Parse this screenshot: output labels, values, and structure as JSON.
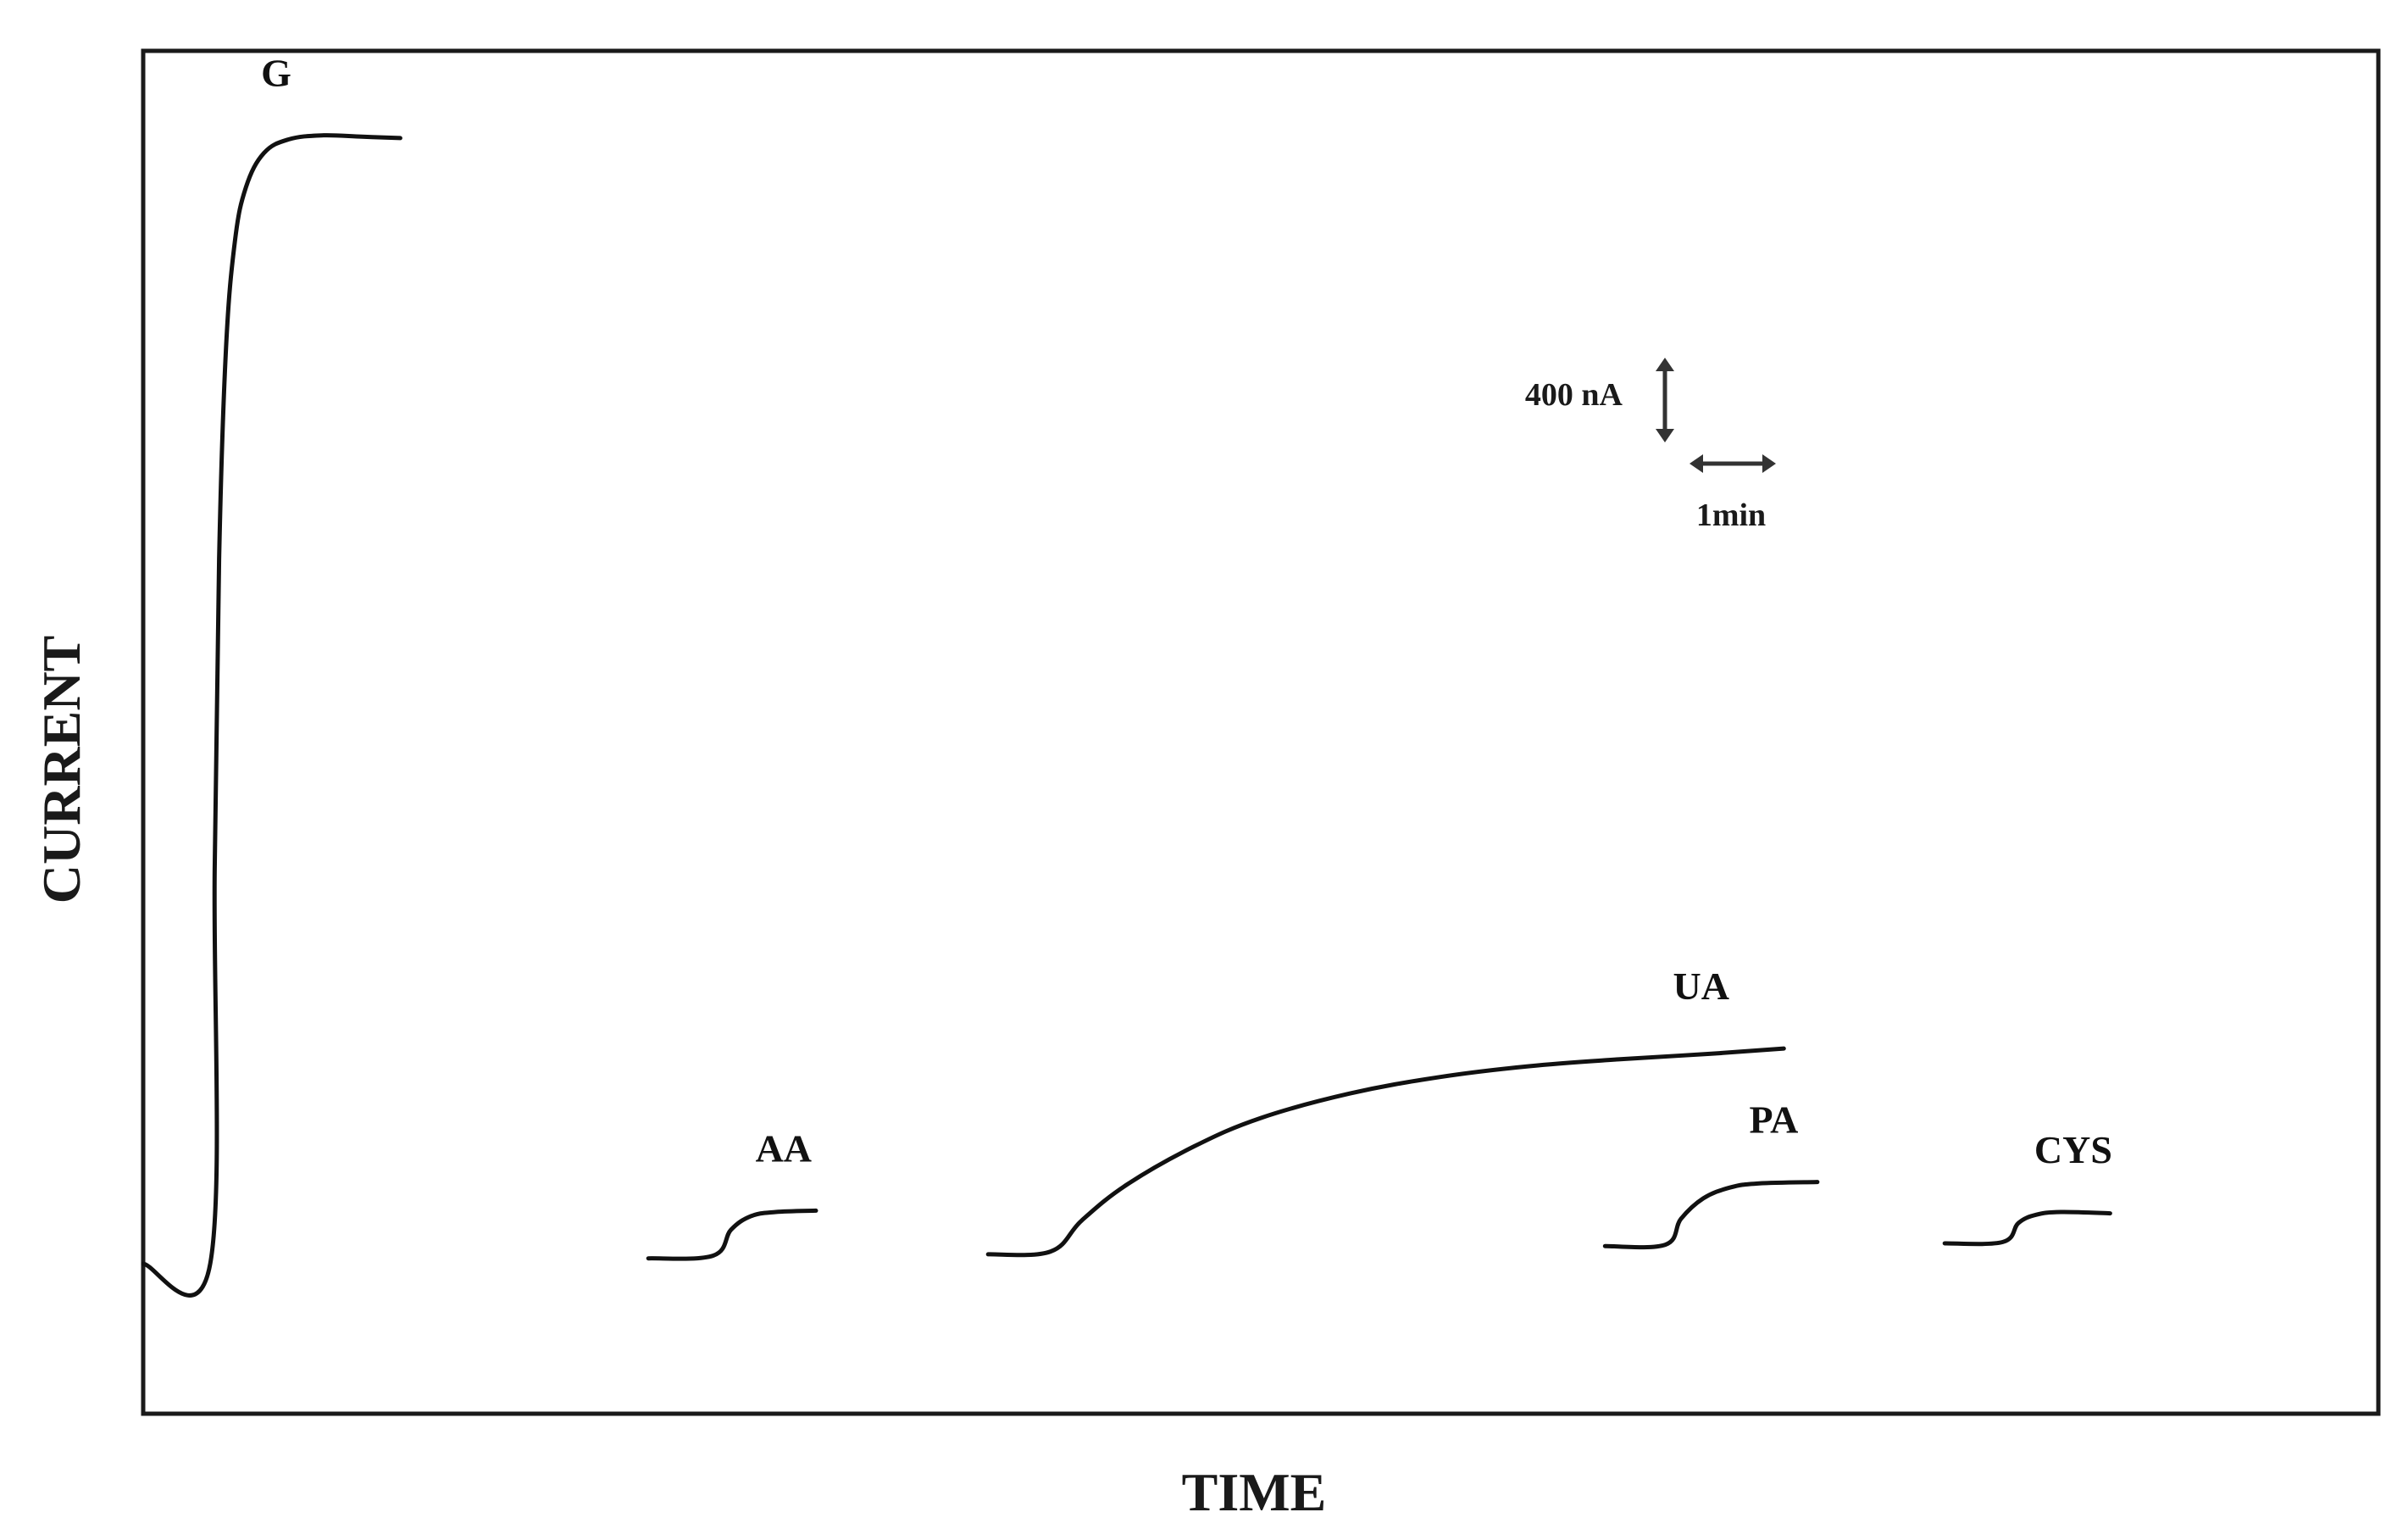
{
  "chart_data": {
    "type": "line",
    "title": "",
    "xlabel": "TIME",
    "ylabel": "CURRENT",
    "xlim": [
      0,
      100
    ],
    "ylim": [
      0,
      100
    ],
    "grid": false,
    "scale_bars": {
      "current_label": "400 nA",
      "time_label": "1min"
    },
    "series": [
      {
        "name": "G",
        "x": [
          0,
          3,
          3.2,
          3.4,
          3.7,
          4.1,
          4.6,
          5.4,
          6.5,
          8.0,
          9.8,
          11.5
        ],
        "y": [
          11,
          11,
          40,
          63,
          78,
          86,
          90,
          92.5,
          93.5,
          93.8,
          93.7,
          93.6
        ]
      },
      {
        "name": "AA",
        "x": [
          22.6,
          25.5,
          26.3,
          27.2,
          28.3,
          30.1
        ],
        "y": [
          11.4,
          11.6,
          13.5,
          14.5,
          14.8,
          14.9
        ]
      },
      {
        "name": "UA",
        "x": [
          37.8,
          40.6,
          42,
          44,
          47,
          50,
          54,
          58,
          62,
          66,
          70,
          73.4
        ],
        "y": [
          11.7,
          11.9,
          14.2,
          16.8,
          19.6,
          21.7,
          23.5,
          24.7,
          25.5,
          26.0,
          26.4,
          26.8
        ]
      },
      {
        "name": "PA",
        "x": [
          65.4,
          68.1,
          68.8,
          69.8,
          71.0,
          72.3,
          74.9
        ],
        "y": [
          12.3,
          12.4,
          14.3,
          15.8,
          16.6,
          16.9,
          17.0
        ]
      },
      {
        "name": "CYS",
        "x": [
          80.6,
          83.2,
          83.9,
          84.7,
          85.8,
          88.0
        ],
        "y": [
          12.5,
          12.6,
          14.0,
          14.6,
          14.8,
          14.7
        ]
      }
    ]
  }
}
